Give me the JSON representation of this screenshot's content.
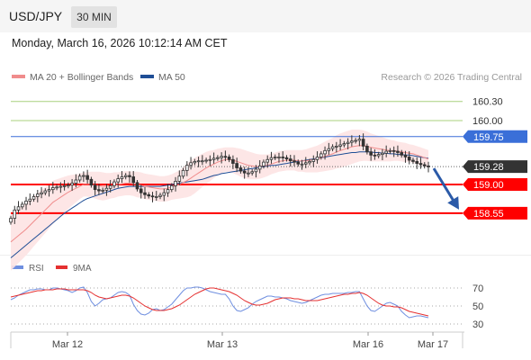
{
  "header": {
    "symbol": "USD/JPY",
    "timeframe": "30 MIN",
    "datetime": "Monday, March 16, 2026 10:12:14 AM CET"
  },
  "legend": {
    "ma20_label": "MA 20 + Bollinger Bands",
    "ma50_label": "MA 50",
    "credit": "Research © 2026 Trading Central"
  },
  "rsi_legend": {
    "rsi_label": "RSI",
    "ma9_label": "9MA"
  },
  "colors": {
    "ma20": "#f08c8c",
    "ma50": "#1f4e96",
    "bollinger_fill": "#fde3e3",
    "candle": "#333333",
    "level_green": "#a8d07e",
    "level_blue": "#3a6fd8",
    "level_red": "#ff0000",
    "current_price_box": "#333333",
    "forecast_arrow": "#2b5aa8",
    "rsi_line": "#6f8fe0",
    "rsi_ma9_line": "#e53030"
  },
  "chart_data": [
    {
      "type": "candlestick",
      "x_axis_labels": [
        "Mar 12",
        "Mar 13",
        "Mar 16",
        "Mar 17"
      ],
      "price_levels": [
        {
          "value": "160.30",
          "kind": "resistance"
        },
        {
          "value": "160.00",
          "kind": "resistance"
        },
        {
          "value": "159.75",
          "kind": "pivot"
        },
        {
          "value": "159.28",
          "kind": "current"
        },
        {
          "value": "159.00",
          "kind": "support"
        },
        {
          "value": "158.55",
          "kind": "target"
        }
      ],
      "ylim": [
        157.9,
        160.55
      ],
      "forecast": "bearish arrow from current price toward 158.55",
      "close": [
        158.47,
        158.6,
        158.65,
        158.69,
        158.74,
        158.77,
        158.81,
        158.85,
        158.87,
        158.9,
        158.92,
        158.95,
        158.96,
        158.97,
        158.98,
        158.99,
        159.02,
        159.07,
        159.13,
        159.14,
        159.08,
        158.99,
        158.92,
        158.9,
        158.91,
        158.94,
        158.98,
        159.04,
        159.09,
        159.12,
        159.14,
        159.12,
        159.03,
        158.93,
        158.87,
        158.84,
        158.82,
        158.81,
        158.81,
        158.83,
        158.87,
        158.92,
        158.98,
        159.05,
        159.13,
        159.22,
        159.3,
        159.34,
        159.36,
        159.37,
        159.37,
        159.38,
        159.39,
        159.41,
        159.42,
        159.44,
        159.43,
        159.39,
        159.33,
        159.26,
        159.21,
        159.18,
        159.18,
        159.2,
        159.24,
        159.29,
        159.35,
        159.39,
        159.42,
        159.43,
        159.43,
        159.42,
        159.4,
        159.37,
        159.35,
        159.32,
        159.32,
        159.34,
        159.36,
        159.39,
        159.43,
        159.48,
        159.53,
        159.56,
        159.59,
        159.6,
        159.62,
        159.64,
        159.66,
        159.68,
        159.69,
        159.71,
        159.6,
        159.51,
        159.46,
        159.45,
        159.47,
        159.49,
        159.52,
        159.53,
        159.52,
        159.5,
        159.46,
        159.43,
        159.38,
        159.36,
        159.33,
        159.31,
        159.29,
        159.28
      ],
      "ma20": [
        158.1,
        158.15,
        158.2,
        158.25,
        158.3,
        158.36,
        158.42,
        158.48,
        158.54,
        158.6,
        158.66,
        158.72,
        158.76,
        158.8,
        158.84,
        158.88,
        158.91,
        158.94,
        158.97,
        159.0,
        159.0,
        159.0,
        158.99,
        158.98,
        158.97,
        158.97,
        158.98,
        158.99,
        159.0,
        159.01,
        159.02,
        159.02,
        159.01,
        159.0,
        158.99,
        158.97,
        158.96,
        158.95,
        158.94,
        158.93,
        158.93,
        158.94,
        158.96,
        158.98,
        159.0,
        159.03,
        159.06,
        159.1,
        159.14,
        159.18,
        159.22,
        159.26,
        159.29,
        159.32,
        159.35,
        159.37,
        159.39,
        159.39,
        159.38,
        159.36,
        159.34,
        159.32,
        159.3,
        159.29,
        159.28,
        159.28,
        159.29,
        159.3,
        159.32,
        159.34,
        159.36,
        159.37,
        159.38,
        159.38,
        159.38,
        159.37,
        159.37,
        159.37,
        159.38,
        159.39,
        159.4,
        159.42,
        159.44,
        159.46,
        159.48,
        159.51,
        159.53,
        159.55,
        159.57,
        159.59,
        159.6,
        159.61,
        159.61,
        159.6,
        159.58,
        159.57,
        159.56,
        159.55,
        159.54,
        159.53,
        159.53,
        159.52,
        159.51,
        159.5,
        159.49,
        159.48,
        159.46,
        159.44,
        159.42,
        159.4
      ],
      "ma50": [
        157.85,
        157.9,
        157.95,
        158.0,
        158.05,
        158.1,
        158.15,
        158.2,
        158.25,
        158.3,
        158.35,
        158.4,
        158.45,
        158.5,
        158.55,
        158.59,
        158.63,
        158.67,
        158.71,
        158.75,
        158.78,
        158.8,
        158.82,
        158.84,
        158.86,
        158.88,
        158.9,
        158.92,
        158.94,
        158.95,
        158.96,
        158.97,
        158.97,
        158.97,
        158.97,
        158.97,
        158.97,
        158.97,
        158.97,
        158.97,
        158.98,
        158.99,
        159.0,
        159.01,
        159.02,
        159.03,
        159.04,
        159.05,
        159.06,
        159.07,
        159.08,
        159.1,
        159.12,
        159.14,
        159.15,
        159.17,
        159.18,
        159.19,
        159.2,
        159.21,
        159.22,
        159.23,
        159.24,
        159.25,
        159.26,
        159.27,
        159.28,
        159.29,
        159.3,
        159.3,
        159.31,
        159.32,
        159.33,
        159.34,
        159.35,
        159.36,
        159.37,
        159.38,
        159.39,
        159.4,
        159.41,
        159.42,
        159.43,
        159.44,
        159.45,
        159.46,
        159.47,
        159.48,
        159.49,
        159.5,
        159.5,
        159.51,
        159.51,
        159.51,
        159.51,
        159.5,
        159.5,
        159.49,
        159.49,
        159.48,
        159.48,
        159.47,
        159.47,
        159.46,
        159.46,
        159.45,
        159.44,
        159.43,
        159.42,
        159.41
      ],
      "bb_width": [
        0.45,
        0.44,
        0.43,
        0.42,
        0.41,
        0.4,
        0.39,
        0.38,
        0.37,
        0.36,
        0.35,
        0.34,
        0.32,
        0.3,
        0.28,
        0.26,
        0.24,
        0.22,
        0.2,
        0.19,
        0.19,
        0.2,
        0.21,
        0.22,
        0.22,
        0.21,
        0.2,
        0.2,
        0.19,
        0.19,
        0.19,
        0.19,
        0.19,
        0.2,
        0.2,
        0.2,
        0.2,
        0.2,
        0.2,
        0.2,
        0.2,
        0.2,
        0.2,
        0.21,
        0.22,
        0.24,
        0.26,
        0.28,
        0.28,
        0.27,
        0.26,
        0.25,
        0.24,
        0.22,
        0.21,
        0.2,
        0.19,
        0.19,
        0.2,
        0.21,
        0.22,
        0.22,
        0.22,
        0.21,
        0.2,
        0.19,
        0.18,
        0.17,
        0.16,
        0.16,
        0.16,
        0.16,
        0.16,
        0.16,
        0.16,
        0.17,
        0.17,
        0.18,
        0.19,
        0.2,
        0.21,
        0.22,
        0.23,
        0.24,
        0.25,
        0.26,
        0.27,
        0.27,
        0.27,
        0.27,
        0.26,
        0.25,
        0.24,
        0.23,
        0.22,
        0.21,
        0.2,
        0.19,
        0.18,
        0.17,
        0.16,
        0.15,
        0.15,
        0.15,
        0.14,
        0.14,
        0.14,
        0.14,
        0.14,
        0.14
      ]
    },
    {
      "type": "line",
      "title": "RSI",
      "y_ticks": [
        "70",
        "50",
        "30"
      ],
      "ylim": [
        22,
        80
      ],
      "series": [
        {
          "name": "RSI",
          "values": [
            57,
            59,
            62,
            64,
            66,
            68,
            68,
            69,
            69,
            68,
            68,
            70,
            70,
            69,
            68,
            67,
            65,
            67,
            70,
            71,
            65,
            55,
            50,
            53,
            57,
            58,
            59,
            62,
            65,
            66,
            65,
            62,
            52,
            45,
            41,
            40,
            42,
            46,
            47,
            45,
            46,
            49,
            52,
            57,
            62,
            67,
            70,
            70,
            71,
            71,
            70,
            68,
            66,
            65,
            64,
            63,
            63,
            58,
            50,
            45,
            44,
            46,
            48,
            52,
            55,
            57,
            59,
            61,
            61,
            60,
            60,
            59,
            58,
            56,
            55,
            54,
            53,
            54,
            56,
            58,
            60,
            62,
            63,
            63,
            64,
            64,
            64,
            64,
            65,
            65,
            66,
            66,
            58,
            50,
            45,
            44,
            47,
            50,
            53,
            54,
            52,
            50,
            44,
            40,
            37,
            38,
            39,
            39,
            38,
            37
          ]
        },
        {
          "name": "9MA",
          "values": [
            60,
            61,
            62,
            63,
            64,
            65,
            66,
            67,
            67,
            68,
            68,
            68,
            69,
            69,
            69,
            68,
            68,
            68,
            68,
            68,
            67,
            65,
            62,
            60,
            59,
            58,
            59,
            60,
            61,
            62,
            62,
            61,
            59,
            56,
            53,
            50,
            48,
            46,
            45,
            45,
            45,
            46,
            47,
            49,
            51,
            54,
            57,
            60,
            63,
            65,
            67,
            69,
            70,
            70,
            69,
            68,
            67,
            66,
            64,
            62,
            59,
            56,
            54,
            52,
            51,
            51,
            52,
            53,
            55,
            57,
            58,
            59,
            59,
            59,
            58,
            58,
            57,
            56,
            56,
            56,
            56,
            57,
            58,
            59,
            60,
            61,
            62,
            63,
            63,
            64,
            64,
            65,
            64,
            62,
            59,
            56,
            53,
            51,
            50,
            50,
            49,
            49,
            48,
            46,
            44,
            43,
            42,
            41,
            40,
            39
          ]
        }
      ]
    }
  ]
}
